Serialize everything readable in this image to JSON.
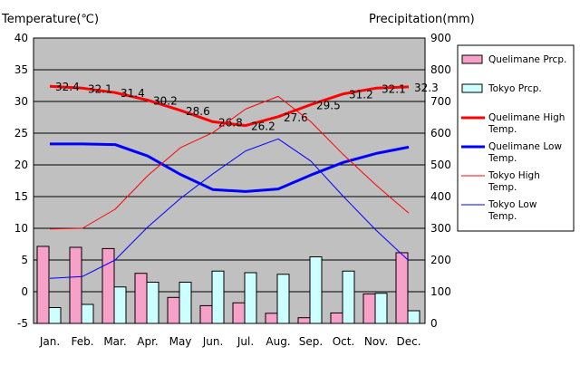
{
  "chart_data": {
    "type": "bar",
    "left_axis_title": "Temperature(℃)",
    "right_axis_title": "Precipitation(mm)",
    "categories": [
      "Jan.",
      "Feb.",
      "Mar.",
      "Apr.",
      "May",
      "Jun.",
      "Jul.",
      "Aug.",
      "Sep.",
      "Oct.",
      "Nov.",
      "Dec."
    ],
    "left_axis": {
      "min": -5,
      "max": 40,
      "ticks": [
        40,
        35,
        30,
        25,
        20,
        15,
        10,
        5,
        0,
        -5
      ]
    },
    "right_axis": {
      "min": 0,
      "max": 900,
      "ticks": [
        900,
        800,
        700,
        600,
        500,
        400,
        300,
        200,
        100,
        0
      ]
    },
    "grid": "horizontal",
    "legend_placement": "right",
    "series": [
      {
        "name": "Quelimane Prcp.",
        "kind": "bar",
        "axis": "right",
        "color": "#f7a0c8",
        "values": [
          243,
          240,
          236,
          158,
          82,
          56,
          65,
          32,
          18,
          33,
          93,
          223
        ]
      },
      {
        "name": "Tokyo Prcp.",
        "kind": "bar",
        "axis": "right",
        "color": "#ccffff",
        "values": [
          50,
          60,
          115,
          130,
          130,
          165,
          160,
          155,
          210,
          165,
          95,
          40
        ]
      },
      {
        "name": "Quelimane High Temp.",
        "kind": "line",
        "axis": "left",
        "color": "#ff0000",
        "width": 3,
        "values": [
          32.4,
          32.1,
          31.4,
          30.2,
          28.6,
          26.8,
          26.2,
          27.6,
          29.5,
          31.2,
          32.1,
          32.3
        ],
        "labels": [
          "32.4",
          "32.1",
          "31.4",
          "30.2",
          "28.6",
          "26.8",
          "26.2",
          "27.6",
          "29.5",
          "31.2",
          "32.1",
          "32.3"
        ]
      },
      {
        "name": "Quelimane Low Temp.",
        "kind": "line",
        "axis": "left",
        "color": "#0000ff",
        "width": 3,
        "values": [
          23.3,
          23.3,
          23.2,
          21.4,
          18.5,
          16.1,
          15.8,
          16.2,
          18.4,
          20.4,
          21.8,
          22.8
        ]
      },
      {
        "name": "Tokyo High Temp.",
        "kind": "line",
        "axis": "left",
        "color": "#ff0000",
        "width": 1,
        "values": [
          9.9,
          10.0,
          13.0,
          18.3,
          22.7,
          25.1,
          28.8,
          30.8,
          26.8,
          21.6,
          16.8,
          12.4
        ]
      },
      {
        "name": "Tokyo Low Temp.",
        "kind": "line",
        "axis": "left",
        "color": "#0000ff",
        "width": 1,
        "values": [
          2.1,
          2.4,
          5.0,
          10.2,
          14.7,
          18.6,
          22.2,
          24.1,
          20.6,
          15.0,
          9.7,
          4.9
        ]
      }
    ]
  }
}
